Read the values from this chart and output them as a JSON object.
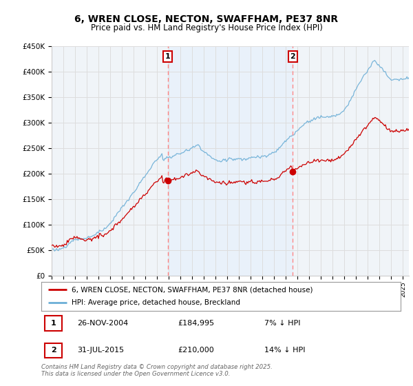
{
  "title": "6, WREN CLOSE, NECTON, SWAFFHAM, PE37 8NR",
  "subtitle": "Price paid vs. HM Land Registry's House Price Index (HPI)",
  "ylabel_ticks": [
    "£0",
    "£50K",
    "£100K",
    "£150K",
    "£200K",
    "£250K",
    "£300K",
    "£350K",
    "£400K",
    "£450K"
  ],
  "ylim": [
    0,
    450000
  ],
  "xlim_start": 1995.0,
  "xlim_end": 2025.5,
  "transaction1": {
    "date": 2004.91,
    "price": 184995,
    "label": "1",
    "pct": "7% ↓ HPI",
    "date_str": "26-NOV-2004"
  },
  "transaction2": {
    "date": 2015.58,
    "price": 210000,
    "label": "2",
    "pct": "14% ↓ HPI",
    "date_str": "31-JUL-2015"
  },
  "legend_house": "6, WREN CLOSE, NECTON, SWAFFHAM, PE37 8NR (detached house)",
  "legend_hpi": "HPI: Average price, detached house, Breckland",
  "footer": "Contains HM Land Registry data © Crown copyright and database right 2025.\nThis data is licensed under the Open Government Licence v3.0.",
  "line_color_house": "#cc0000",
  "line_color_hpi": "#6baed6",
  "annotation_box_color": "#cc0000",
  "vline_color": "#ff8888",
  "grid_color": "#dddddd",
  "background_color": "#ffffff",
  "plot_bg_color": "#f0f4f8",
  "shade_color": "#ddeeff"
}
